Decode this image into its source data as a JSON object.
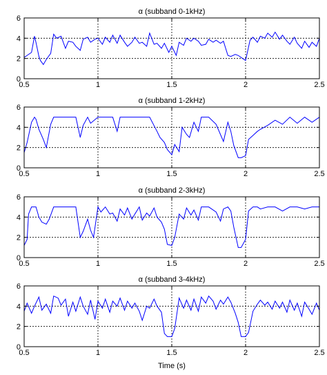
{
  "figure": {
    "xlabel": "Time (s)"
  },
  "chart_data": [
    {
      "type": "line",
      "title": "α (subband 0-1kHz)",
      "xlim": [
        0.5,
        2.5
      ],
      "ylim": [
        0,
        6
      ],
      "xticks": [
        0.5,
        1,
        1.5,
        2,
        2.5
      ],
      "yticks": [
        0,
        2,
        4,
        6
      ],
      "grid": true,
      "color": "#0000ff",
      "series": [
        {
          "x": [
            0.5,
            0.52,
            0.55,
            0.57,
            0.58,
            0.6,
            0.61,
            0.63,
            0.65,
            0.68,
            0.7,
            0.72,
            0.75,
            0.78,
            0.8,
            0.83,
            0.85,
            0.88,
            0.9,
            0.93,
            0.95,
            0.98,
            1.0,
            1.03,
            1.05,
            1.08,
            1.1,
            1.13,
            1.15,
            1.18,
            1.2,
            1.23,
            1.25,
            1.28,
            1.3,
            1.33,
            1.35,
            1.38,
            1.4,
            1.43,
            1.45,
            1.48,
            1.5,
            1.53,
            1.55,
            1.58,
            1.6,
            1.63,
            1.65,
            1.68,
            1.7,
            1.73,
            1.75,
            1.78,
            1.8,
            1.83,
            1.85,
            1.88,
            1.9,
            1.93,
            1.95,
            1.98,
            2.0,
            2.03,
            2.05,
            2.08,
            2.1,
            2.13,
            2.15,
            2.18,
            2.2,
            2.23,
            2.25,
            2.28,
            2.3,
            2.33,
            2.35,
            2.38,
            2.4,
            2.43,
            2.45,
            2.48,
            2.5
          ],
          "y": [
            2.1,
            2.3,
            2.6,
            4.2,
            3.6,
            2.2,
            1.8,
            1.4,
            1.9,
            2.5,
            4.4,
            4.0,
            4.2,
            3.0,
            3.7,
            3.6,
            3.2,
            2.8,
            3.9,
            4.1,
            3.6,
            3.9,
            4.0,
            3.4,
            4.1,
            3.6,
            4.3,
            3.5,
            4.3,
            3.6,
            3.2,
            3.6,
            4.1,
            3.5,
            3.6,
            3.2,
            4.5,
            3.4,
            3.5,
            3.0,
            3.5,
            2.6,
            3.2,
            2.3,
            3.6,
            3.3,
            4.0,
            3.7,
            4.0,
            3.7,
            3.3,
            3.4,
            3.9,
            3.6,
            3.8,
            3.5,
            3.7,
            2.3,
            2.2,
            2.4,
            2.3,
            2.0,
            1.8,
            3.8,
            4.1,
            3.6,
            4.2,
            4.0,
            4.5,
            4.1,
            4.6,
            3.9,
            4.3,
            3.7,
            3.4,
            4.1,
            3.5,
            3.0,
            3.7,
            3.1,
            3.6,
            3.2,
            4.0
          ]
        }
      ]
    },
    {
      "type": "line",
      "title": "α (subband 1-2kHz)",
      "xlim": [
        0.5,
        2.5
      ],
      "ylim": [
        0,
        6
      ],
      "xticks": [
        0.5,
        1,
        1.5,
        2,
        2.5
      ],
      "yticks": [
        0,
        2,
        4,
        6
      ],
      "grid": true,
      "color": "#0000ff",
      "series": [
        {
          "x": [
            0.5,
            0.52,
            0.55,
            0.57,
            0.58,
            0.6,
            0.63,
            0.65,
            0.68,
            0.7,
            0.72,
            0.75,
            0.78,
            0.8,
            0.85,
            0.88,
            0.9,
            0.93,
            0.95,
            1.0,
            1.05,
            1.1,
            1.13,
            1.15,
            1.2,
            1.25,
            1.3,
            1.35,
            1.4,
            1.42,
            1.45,
            1.47,
            1.5,
            1.52,
            1.55,
            1.57,
            1.6,
            1.62,
            1.65,
            1.68,
            1.7,
            1.75,
            1.8,
            1.85,
            1.88,
            1.9,
            1.92,
            1.95,
            1.97,
            2.0,
            2.02,
            2.05,
            2.08,
            2.1,
            2.15,
            2.2,
            2.25,
            2.3,
            2.35,
            2.4,
            2.45,
            2.5
          ],
          "y": [
            1.5,
            2.5,
            4.5,
            5.0,
            4.8,
            3.8,
            2.8,
            2.0,
            4.3,
            5.0,
            5.0,
            5.0,
            5.0,
            5.0,
            5.0,
            3.0,
            4.2,
            5.0,
            4.4,
            5.0,
            5.0,
            5.0,
            3.6,
            5.0,
            5.0,
            5.0,
            5.0,
            5.0,
            3.6,
            3.0,
            2.5,
            1.8,
            1.3,
            2.3,
            1.6,
            4.0,
            3.3,
            3.0,
            4.5,
            3.6,
            5.0,
            5.0,
            4.3,
            2.6,
            4.5,
            3.6,
            2.2,
            1.0,
            1.0,
            1.2,
            2.8,
            3.2,
            3.6,
            3.8,
            4.2,
            4.7,
            4.3,
            5.0,
            4.4,
            5.0,
            4.5,
            5.0
          ]
        }
      ]
    },
    {
      "type": "line",
      "title": "α (subband 2-3kHz)",
      "xlim": [
        0.5,
        2.5
      ],
      "ylim": [
        0,
        6
      ],
      "xticks": [
        0.5,
        1,
        1.5,
        2,
        2.5
      ],
      "yticks": [
        0,
        2,
        4,
        6
      ],
      "grid": true,
      "color": "#0000ff",
      "series": [
        {
          "x": [
            0.5,
            0.52,
            0.53,
            0.55,
            0.58,
            0.6,
            0.62,
            0.65,
            0.67,
            0.7,
            0.75,
            0.8,
            0.85,
            0.88,
            0.9,
            0.93,
            0.95,
            0.97,
            1.0,
            1.02,
            1.05,
            1.08,
            1.1,
            1.13,
            1.15,
            1.18,
            1.2,
            1.23,
            1.25,
            1.28,
            1.3,
            1.33,
            1.35,
            1.38,
            1.4,
            1.43,
            1.45,
            1.47,
            1.5,
            1.52,
            1.55,
            1.58,
            1.6,
            1.63,
            1.65,
            1.68,
            1.7,
            1.75,
            1.8,
            1.83,
            1.85,
            1.88,
            1.9,
            1.92,
            1.95,
            1.97,
            2.0,
            2.02,
            2.05,
            2.08,
            2.1,
            2.15,
            2.2,
            2.25,
            2.3,
            2.35,
            2.4,
            2.45,
            2.5
          ],
          "y": [
            1.2,
            1.8,
            4.3,
            5.0,
            5.0,
            4.0,
            3.5,
            3.3,
            3.8,
            5.0,
            5.0,
            5.0,
            5.0,
            2.0,
            2.6,
            3.8,
            2.7,
            2.0,
            5.0,
            4.5,
            5.0,
            4.3,
            4.4,
            3.6,
            4.8,
            4.2,
            4.9,
            3.8,
            4.3,
            5.0,
            3.7,
            4.4,
            4.1,
            4.9,
            4.0,
            3.5,
            2.8,
            1.3,
            1.2,
            2.0,
            4.3,
            3.8,
            4.9,
            4.2,
            4.7,
            3.7,
            5.0,
            5.0,
            4.5,
            3.6,
            4.8,
            5.0,
            4.6,
            3.0,
            1.0,
            1.0,
            1.8,
            4.6,
            5.0,
            5.0,
            4.8,
            5.0,
            5.0,
            4.6,
            5.0,
            5.0,
            4.8,
            5.0,
            5.0
          ]
        }
      ]
    },
    {
      "type": "line",
      "title": "α (subband 3-4kHz)",
      "xlim": [
        0.5,
        2.5
      ],
      "ylim": [
        0,
        6
      ],
      "xticks": [
        0.5,
        1,
        1.5,
        2,
        2.5
      ],
      "yticks": [
        0,
        2,
        4,
        6
      ],
      "grid": true,
      "color": "#0000ff",
      "series": [
        {
          "x": [
            0.5,
            0.52,
            0.55,
            0.57,
            0.6,
            0.62,
            0.65,
            0.68,
            0.7,
            0.73,
            0.75,
            0.78,
            0.8,
            0.83,
            0.85,
            0.88,
            0.9,
            0.93,
            0.95,
            0.98,
            1.0,
            1.03,
            1.05,
            1.08,
            1.1,
            1.13,
            1.15,
            1.18,
            1.2,
            1.23,
            1.25,
            1.28,
            1.3,
            1.33,
            1.35,
            1.38,
            1.4,
            1.43,
            1.45,
            1.47,
            1.5,
            1.52,
            1.55,
            1.58,
            1.6,
            1.63,
            1.65,
            1.68,
            1.7,
            1.73,
            1.75,
            1.78,
            1.8,
            1.83,
            1.85,
            1.88,
            1.9,
            1.93,
            1.95,
            1.97,
            2.0,
            2.02,
            2.05,
            2.08,
            2.1,
            2.13,
            2.15,
            2.18,
            2.2,
            2.23,
            2.25,
            2.28,
            2.3,
            2.33,
            2.35,
            2.38,
            2.4,
            2.43,
            2.45,
            2.48,
            2.5
          ],
          "y": [
            3.5,
            4.3,
            3.3,
            4.0,
            4.9,
            3.6,
            4.2,
            3.3,
            5.0,
            4.8,
            4.1,
            4.7,
            3.0,
            4.4,
            3.5,
            4.9,
            4.0,
            3.2,
            4.6,
            2.7,
            4.5,
            3.8,
            4.7,
            3.4,
            4.5,
            4.0,
            4.8,
            3.6,
            4.5,
            3.8,
            4.3,
            3.5,
            2.6,
            4.0,
            3.8,
            4.7,
            4.0,
            3.4,
            1.3,
            1.0,
            1.0,
            1.8,
            4.8,
            3.8,
            4.6,
            3.6,
            4.7,
            3.5,
            4.9,
            4.3,
            5.0,
            4.5,
            3.7,
            4.6,
            4.2,
            4.9,
            4.4,
            3.3,
            2.4,
            1.0,
            1.0,
            1.4,
            3.5,
            4.2,
            4.6,
            4.1,
            4.4,
            3.7,
            4.5,
            3.8,
            4.4,
            3.4,
            4.6,
            3.6,
            4.3,
            3.0,
            4.4,
            3.7,
            3.2,
            4.3,
            3.6
          ]
        }
      ]
    }
  ]
}
